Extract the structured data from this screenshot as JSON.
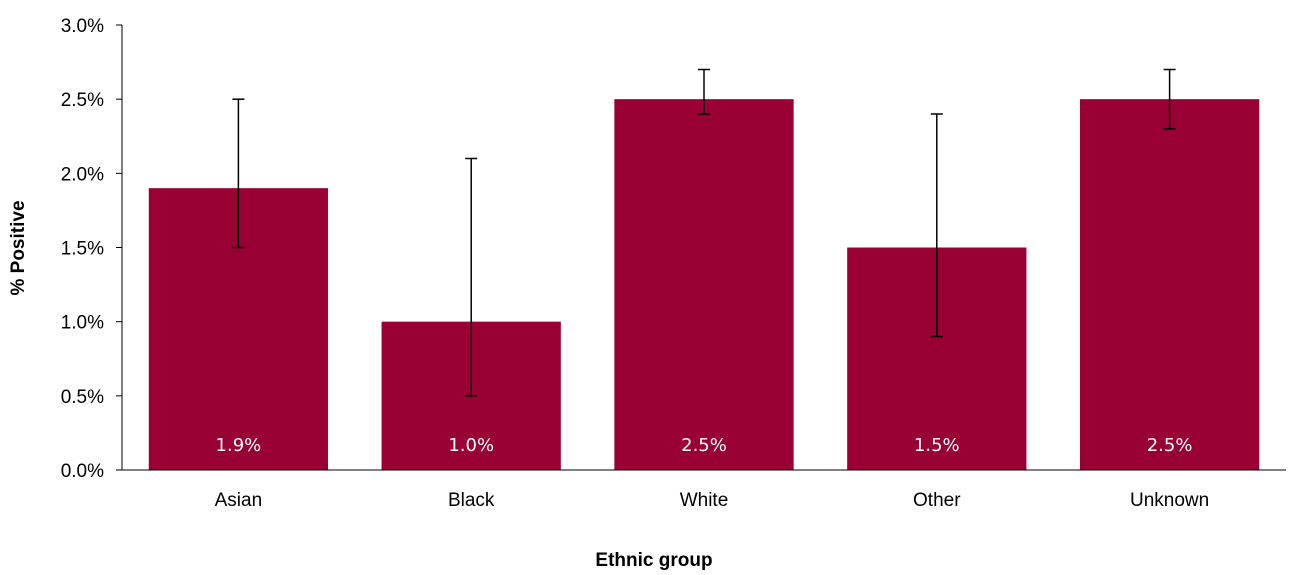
{
  "chart_data": {
    "type": "bar",
    "xlabel": "Ethnic group",
    "ylabel": "% Positive",
    "categories": [
      "Asian",
      "Black",
      "White",
      "Other",
      "Unknown"
    ],
    "values": [
      1.9,
      1.0,
      2.5,
      1.5,
      2.5
    ],
    "data_labels": [
      "1.9%",
      "1.0%",
      "2.5%",
      "1.5%",
      "2.5%"
    ],
    "error_low": [
      1.5,
      0.5,
      2.4,
      0.9,
      2.3
    ],
    "error_high": [
      2.5,
      2.1,
      2.7,
      2.4,
      2.7
    ],
    "ylim": [
      0,
      3.0
    ],
    "yticks": [
      0,
      0.5,
      1.0,
      1.5,
      2.0,
      2.5,
      3.0
    ],
    "ytick_labels": [
      "0.0%",
      "0.5%",
      "1.0%",
      "1.5%",
      "2.0%",
      "2.5%",
      "3.0%"
    ],
    "grid": false,
    "legend": "none",
    "bar_color": "#990033",
    "error_bar_color": "#000000",
    "data_label_color": "#ffffff"
  }
}
